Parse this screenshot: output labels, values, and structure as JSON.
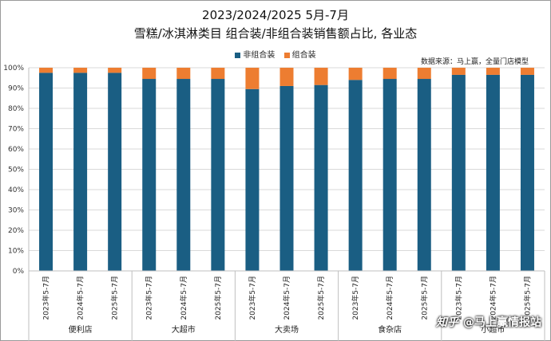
{
  "title_line1": "2023/2024/2025 5月-7月",
  "title_line2": "雪糕/冰淇淋类目 组合装/非组合装销售额占比, 各业态",
  "source_note": "数据来源：马上赢，全量门店模型",
  "watermark": {
    "logo": "知乎",
    "text": "@马上赢情报站"
  },
  "colors": {
    "non_combo": "#1a5e83",
    "combo": "#ed7d31"
  },
  "chart_data": {
    "type": "bar",
    "stacked": true,
    "ylim": [
      0,
      100
    ],
    "yticks": [
      "0%",
      "10%",
      "20%",
      "30%",
      "40%",
      "50%",
      "60%",
      "70%",
      "80%",
      "90%",
      "100%"
    ],
    "groups": [
      {
        "name": "便利店",
        "categories": [
          "2023年5-7月",
          "2024年5-7月",
          "2025年5-7月"
        ]
      },
      {
        "name": "大超市",
        "categories": [
          "2023年5-7月",
          "2024年5-7月",
          "2025年5-7月"
        ]
      },
      {
        "name": "大卖场",
        "categories": [
          "2023年5-7月",
          "2024年5-7月",
          "2025年5-7月"
        ]
      },
      {
        "name": "食杂店",
        "categories": [
          "2023年5-7月",
          "2024年5-7月",
          "2025年5-7月"
        ]
      },
      {
        "name": "小超市",
        "categories": [
          "2023年5-7月",
          "2024年5-7月",
          "2025年5-7月"
        ]
      }
    ],
    "series": [
      {
        "name": "非组合装",
        "values": [
          97.5,
          97.5,
          97.5,
          94.5,
          94.5,
          94.5,
          89.5,
          91.0,
          91.5,
          94.0,
          94.5,
          94.5,
          96.5,
          96.5,
          96.5
        ]
      },
      {
        "name": "组合装",
        "values": [
          2.5,
          2.5,
          2.5,
          5.5,
          5.5,
          5.5,
          10.5,
          9.0,
          8.5,
          6.0,
          5.5,
          5.5,
          3.5,
          3.5,
          3.5
        ]
      }
    ],
    "legend_position": "top-center",
    "grid": true
  }
}
